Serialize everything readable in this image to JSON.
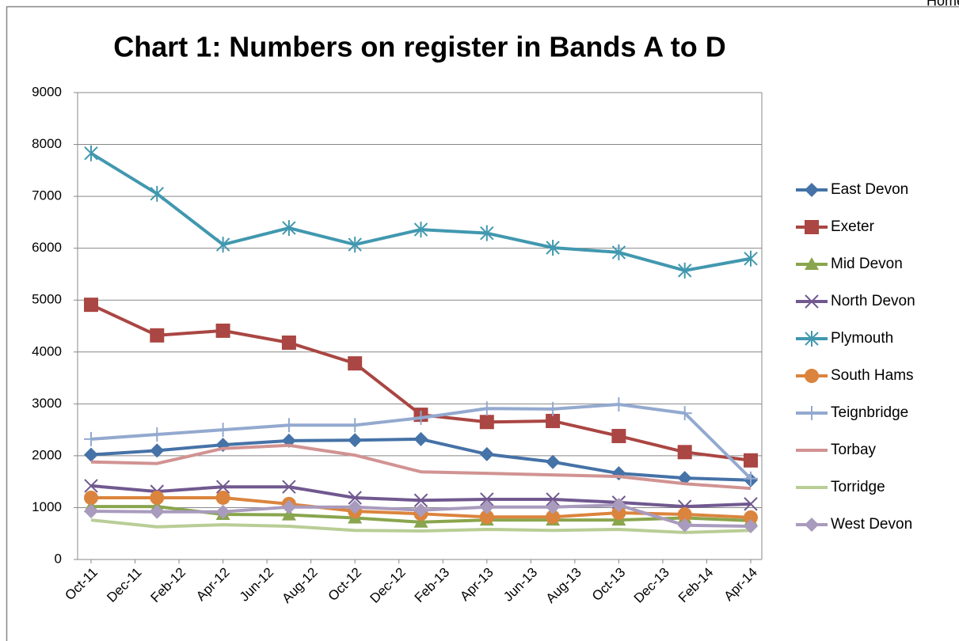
{
  "nav": {
    "home": "Home"
  },
  "chart_data": {
    "type": "line",
    "title": "Chart 1: Numbers on register in Bands A to D",
    "xticks": [
      {
        "value": 0,
        "label": "Oct-11"
      },
      {
        "value": 2,
        "label": "Dec-11"
      },
      {
        "value": 4,
        "label": "Feb-12"
      },
      {
        "value": 6,
        "label": "Apr-12"
      },
      {
        "value": 8,
        "label": "Jun-12"
      },
      {
        "value": 10,
        "label": "Aug-12"
      },
      {
        "value": 12,
        "label": "Oct-12"
      },
      {
        "value": 14,
        "label": "Dec-12"
      },
      {
        "value": 16,
        "label": "Feb-13"
      },
      {
        "value": 18,
        "label": "Apr-13"
      },
      {
        "value": 20,
        "label": "Jun-13"
      },
      {
        "value": 22,
        "label": "Aug-13"
      },
      {
        "value": 24,
        "label": "Oct-13"
      },
      {
        "value": 26,
        "label": "Dec-13"
      },
      {
        "value": 28,
        "label": "Feb-14"
      },
      {
        "value": 30,
        "label": "Apr-14"
      }
    ],
    "xlim": [
      0,
      30
    ],
    "x": [
      0,
      3,
      6,
      9,
      12,
      15,
      18,
      21,
      24,
      27,
      30
    ],
    "ylim": [
      0,
      9000
    ],
    "yticks": [
      0,
      1000,
      2000,
      3000,
      4000,
      5000,
      6000,
      7000,
      8000,
      9000
    ],
    "grid": true,
    "legend": "right",
    "series": [
      {
        "name": "East Devon",
        "color": "#4572a7",
        "marker": "diamond",
        "values": [
          2020,
          2100,
          2210,
          2290,
          2300,
          2320,
          2030,
          1880,
          1660,
          1570,
          1530
        ]
      },
      {
        "name": "Exeter",
        "color": "#aa4643",
        "marker": "square",
        "values": [
          4910,
          4320,
          4410,
          4180,
          3780,
          2790,
          2650,
          2670,
          2380,
          2070,
          1910
        ]
      },
      {
        "name": "Mid Devon",
        "color": "#89a54e",
        "marker": "triangle",
        "values": [
          1020,
          1020,
          870,
          860,
          800,
          720,
          760,
          760,
          760,
          800,
          750
        ]
      },
      {
        "name": "North Devon",
        "color": "#71588f",
        "marker": "x",
        "values": [
          1420,
          1310,
          1400,
          1400,
          1190,
          1140,
          1160,
          1160,
          1100,
          1020,
          1070
        ]
      },
      {
        "name": "Plymouth",
        "color": "#4198af",
        "marker": "star",
        "values": [
          7830,
          7050,
          6070,
          6390,
          6070,
          6360,
          6290,
          6010,
          5920,
          5570,
          5800
        ]
      },
      {
        "name": "South Hams",
        "color": "#db843d",
        "marker": "circle",
        "values": [
          1190,
          1190,
          1190,
          1070,
          930,
          880,
          820,
          820,
          900,
          870,
          810
        ]
      },
      {
        "name": "Teignbridge",
        "color": "#93a9cf",
        "marker": "plus",
        "values": [
          2320,
          2410,
          2500,
          2590,
          2590,
          2730,
          2910,
          2900,
          2990,
          2820,
          1560
        ]
      },
      {
        "name": "Torbay",
        "color": "#d19392",
        "marker": "none",
        "values": [
          1880,
          1850,
          2140,
          2200,
          2010,
          1690,
          1660,
          1630,
          1600,
          1460,
          1370
        ]
      },
      {
        "name": "Torridge",
        "color": "#b9cd96",
        "marker": "none",
        "values": [
          760,
          630,
          670,
          640,
          560,
          550,
          580,
          560,
          580,
          520,
          560
        ]
      },
      {
        "name": "West Devon",
        "color": "#a99bbd",
        "marker": "diamond",
        "values": [
          930,
          920,
          920,
          1010,
          1010,
          950,
          1010,
          1010,
          1050,
          660,
          640
        ]
      }
    ]
  }
}
